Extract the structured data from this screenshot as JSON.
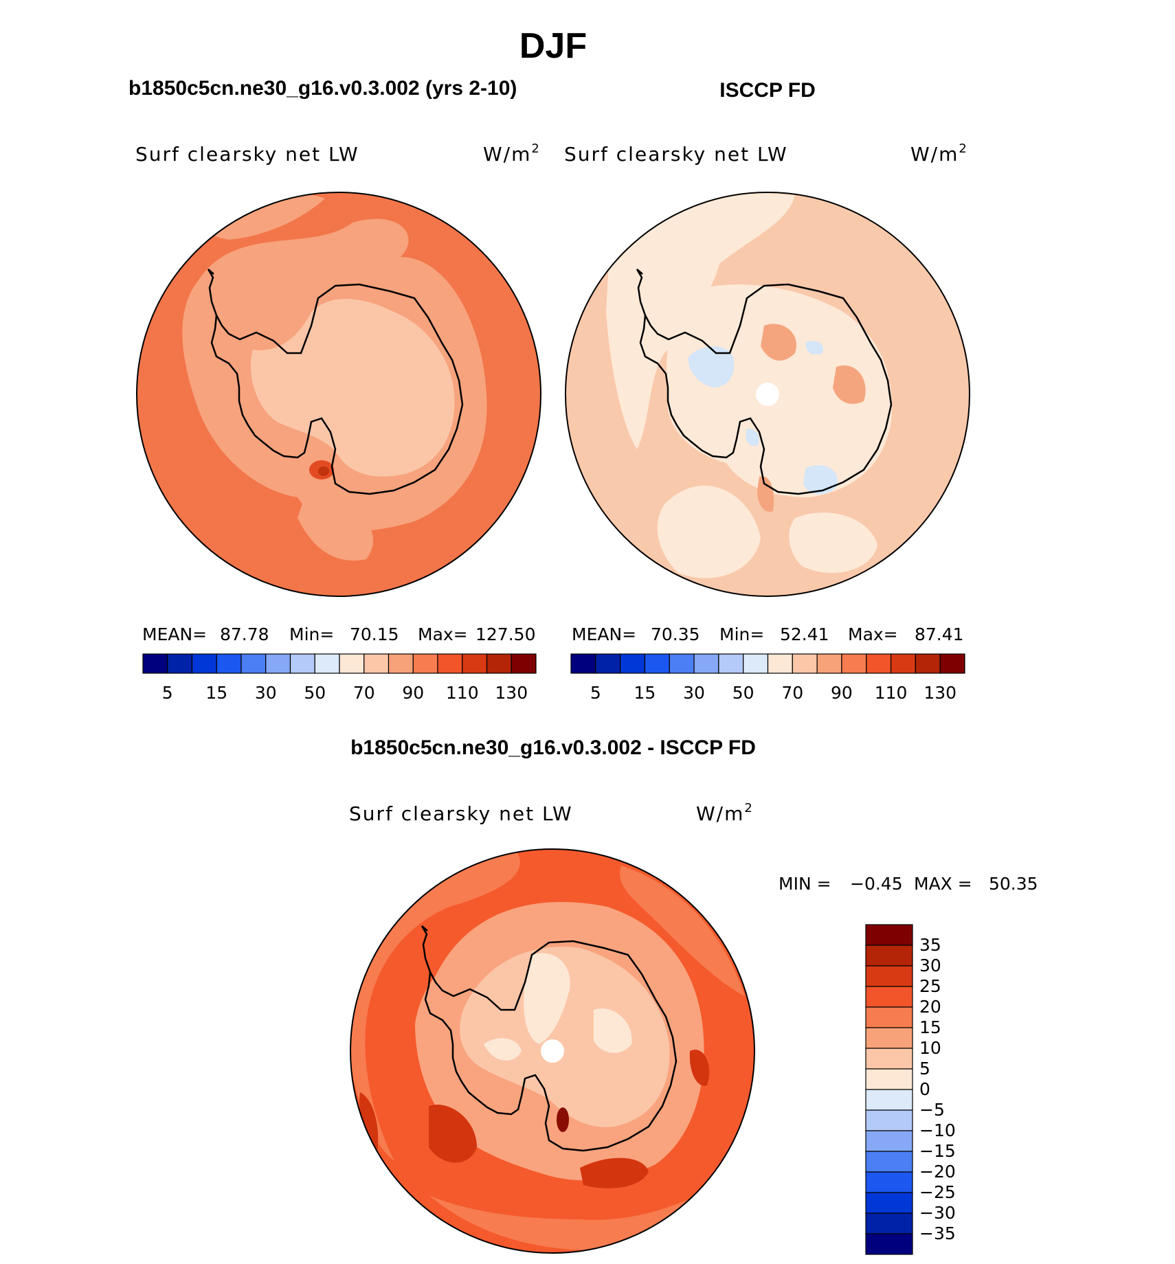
{
  "figure": {
    "season": "DJF",
    "top_left_title": "b1850c5cn.ne30_g16.v0.3.002 (yrs 2-10)",
    "top_right_title": "ISCCP FD",
    "diff_title": "b1850c5cn.ne30_g16.v0.3.002 - ISCCP FD"
  },
  "chart_data": [
    {
      "type": "heatmap",
      "panel": "model",
      "projection": "south polar stereographic",
      "variable": "Surf clearsky net LW",
      "units": "W/m",
      "units_exp": "2",
      "stats": {
        "mean_label": "MEAN=",
        "mean": "87.78",
        "min_label": "Min=",
        "min": "70.15",
        "max_label": "Max=",
        "max": "127.50"
      },
      "colorbar": {
        "orientation": "horizontal",
        "colors": [
          "#00007f",
          "#0022a8",
          "#0038d8",
          "#1c58f0",
          "#4c7ef4",
          "#86a8f6",
          "#b4caf8",
          "#dceafa",
          "#fde8d6",
          "#fbc7a8",
          "#f8a27a",
          "#f77c4f",
          "#f2552a",
          "#d83a14",
          "#b42406",
          "#7f0000"
        ],
        "tick_labels": [
          "5",
          "15",
          "30",
          "50",
          "70",
          "90",
          "110",
          "130"
        ]
      },
      "field_levels": {
        "ocean_base": "#f2764a",
        "shelf": "#f7a37d",
        "interior": "#fbc6a8",
        "coast_peak": "#e24b22",
        "coast_peak_core": "#c0330c"
      }
    },
    {
      "type": "heatmap",
      "panel": "observations",
      "projection": "south polar stereographic",
      "variable": "Surf clearsky net LW",
      "units": "W/m",
      "units_exp": "2",
      "stats": {
        "mean_label": "MEAN=",
        "mean": "70.35",
        "min_label": "Min=",
        "min": "52.41",
        "max_label": "Max=",
        "max": "87.41"
      },
      "colorbar": {
        "orientation": "horizontal",
        "colors": [
          "#00007f",
          "#0022a8",
          "#0038d8",
          "#1c58f0",
          "#4c7ef4",
          "#86a8f6",
          "#b4caf8",
          "#dceafa",
          "#fde8d6",
          "#fbc7a8",
          "#f8a27a",
          "#f77c4f",
          "#f2552a",
          "#d83a14",
          "#b42406",
          "#7f0000"
        ],
        "tick_labels": [
          "5",
          "15",
          "30",
          "50",
          "70",
          "90",
          "110",
          "130"
        ]
      },
      "field_levels": {
        "ocean_base": "#f9c9ac",
        "light_patches": "#fde9d7",
        "blue_patches": "#d4e6f8",
        "warm_patch": "#f5a57e",
        "pole_hole": "#ffffff"
      }
    },
    {
      "type": "heatmap",
      "panel": "difference",
      "projection": "south polar stereographic",
      "variable": "Surf clearsky net LW",
      "units": "W/m",
      "units_exp": "2",
      "stats": {
        "min_label": "MIN =",
        "min": "−0.45",
        "max_label": "MAX =",
        "max": "50.35"
      },
      "colorbar": {
        "orientation": "vertical",
        "colors": [
          "#7f0000",
          "#b42406",
          "#d83a14",
          "#f2552a",
          "#f77c4f",
          "#f8a27a",
          "#fbc7a8",
          "#fde8d6",
          "#dceafa",
          "#b4caf8",
          "#86a8f6",
          "#4c7ef4",
          "#1c58f0",
          "#0038d8",
          "#0022a8",
          "#00007f"
        ],
        "tick_labels": [
          "35",
          "30",
          "25",
          "20",
          "15",
          "10",
          "5",
          "0",
          "−5",
          "−10",
          "−15",
          "−20",
          "−25",
          "−30",
          "−35"
        ]
      },
      "field_levels": {
        "ocean_base": "#f55a2c",
        "outer_ring": "#f77c4f",
        "continent": "#f9a47e",
        "interior_light": "#fbc6a8",
        "core": "#fde8d6",
        "hotspot": "#d3350f",
        "hotspot_core": "#8a0d02",
        "pole_hole": "#ffffff"
      }
    }
  ]
}
